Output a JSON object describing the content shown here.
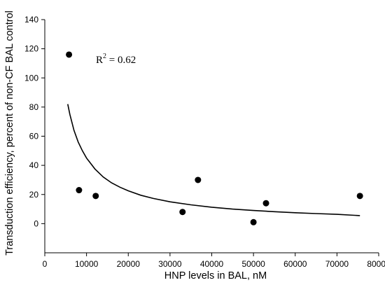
{
  "chart_data": {
    "type": "scatter",
    "title": "",
    "xlabel": "HNP levels in BAL, nM",
    "ylabel": "Transduction efficiency, percent of non-CF BAL control",
    "xlim": [
      0,
      80000
    ],
    "ylim": [
      -20,
      140
    ],
    "xticks": [
      0,
      10000,
      20000,
      30000,
      40000,
      50000,
      60000,
      70000,
      80000
    ],
    "yticks": [
      0,
      20,
      40,
      60,
      80,
      100,
      120,
      140
    ],
    "grid": false,
    "legend": "none",
    "series": [
      {
        "kind": "points",
        "points": [
          {
            "x": 5800,
            "y": 116
          },
          {
            "x": 8200,
            "y": 23
          },
          {
            "x": 12200,
            "y": 19
          },
          {
            "x": 33000,
            "y": 8
          },
          {
            "x": 36700,
            "y": 30
          },
          {
            "x": 50000,
            "y": 1
          },
          {
            "x": 53000,
            "y": 14
          },
          {
            "x": 75500,
            "y": 19
          }
        ]
      },
      {
        "kind": "fit",
        "x": [
          5500,
          6000,
          7000,
          8000,
          9000,
          10000,
          12000,
          14000,
          16000,
          18000,
          20000,
          23000,
          26000,
          30000,
          35000,
          40000,
          45000,
          50000,
          55000,
          60000,
          65000,
          70000,
          75500
        ],
        "y": [
          82,
          75,
          64,
          56,
          50,
          45,
          37.5,
          32,
          28,
          25,
          22.5,
          19.5,
          17.3,
          15,
          12.9,
          11.3,
          10,
          9,
          8.2,
          7.5,
          6.9,
          6.4,
          5.5
        ]
      }
    ],
    "annotation": {
      "base": "R",
      "sup": "2",
      "rest": " = 0.62"
    }
  }
}
